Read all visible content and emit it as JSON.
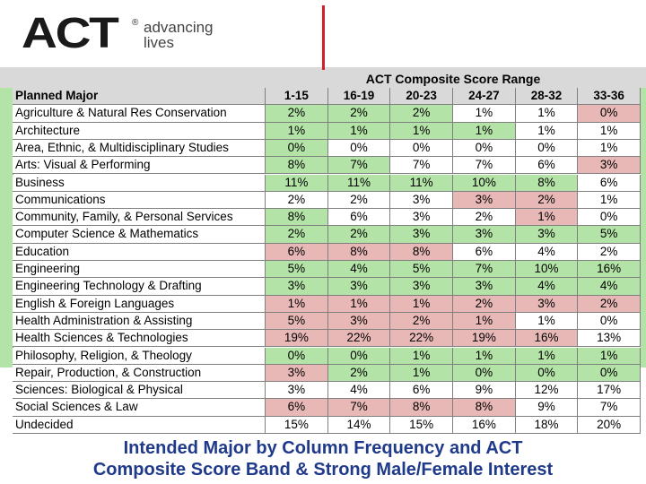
{
  "header": {
    "logo": "ACT",
    "reg": "®",
    "tagline": [
      "advancing",
      "lives"
    ]
  },
  "table": {
    "group_title": "ACT Composite Score Range",
    "columns": [
      "Planned Major",
      "1-15",
      "16-19",
      "20-23",
      "24-27",
      "28-32",
      "33-36"
    ],
    "cell_colors": {
      "g": "#b3e3a6",
      "r": "#e8b8b7",
      "w": "#ffffff",
      "h": "#d9d9d9"
    },
    "rows": [
      [
        "Agriculture & Natural Res Conservation",
        "2%",
        "2%",
        "2%",
        "1%",
        "1%",
        "0%"
      ],
      [
        "Architecture",
        "1%",
        "1%",
        "1%",
        "1%",
        "1%",
        "1%"
      ],
      [
        "Area, Ethnic, & Multidisciplinary Studies",
        "0%",
        "0%",
        "0%",
        "0%",
        "0%",
        "1%"
      ],
      [
        "Arts: Visual & Performing",
        "8%",
        "7%",
        "7%",
        "7%",
        "6%",
        "3%"
      ],
      [
        "Business",
        "11%",
        "11%",
        "11%",
        "10%",
        "8%",
        "6%"
      ],
      [
        "Communications",
        "2%",
        "2%",
        "3%",
        "3%",
        "2%",
        "1%"
      ],
      [
        "Community, Family, & Personal Services",
        "8%",
        "6%",
        "3%",
        "2%",
        "1%",
        "0%"
      ],
      [
        "Computer Science & Mathematics",
        "2%",
        "2%",
        "3%",
        "3%",
        "3%",
        "5%"
      ],
      [
        "Education",
        "6%",
        "8%",
        "8%",
        "6%",
        "4%",
        "2%"
      ],
      [
        "Engineering",
        "5%",
        "4%",
        "5%",
        "7%",
        "10%",
        "16%"
      ],
      [
        "Engineering Technology & Drafting",
        "3%",
        "3%",
        "3%",
        "3%",
        "4%",
        "4%"
      ],
      [
        "English & Foreign Languages",
        "1%",
        "1%",
        "1%",
        "2%",
        "3%",
        "2%"
      ],
      [
        "Health Administration & Assisting",
        "5%",
        "3%",
        "2%",
        "1%",
        "1%",
        "0%"
      ],
      [
        "Health Sciences & Technologies",
        "19%",
        "22%",
        "22%",
        "19%",
        "16%",
        "13%"
      ],
      [
        "Philosophy, Religion, & Theology",
        "0%",
        "0%",
        "1%",
        "1%",
        "1%",
        "1%"
      ],
      [
        "Repair, Production, & Construction",
        "3%",
        "2%",
        "1%",
        "0%",
        "0%",
        "0%"
      ],
      [
        "Sciences: Biological & Physical",
        "3%",
        "4%",
        "6%",
        "9%",
        "12%",
        "17%"
      ],
      [
        "Social Sciences & Law",
        "6%",
        "7%",
        "8%",
        "8%",
        "9%",
        "7%"
      ],
      [
        "Undecided",
        "15%",
        "14%",
        "15%",
        "16%",
        "18%",
        "20%"
      ]
    ],
    "shading": [
      "wgggwwr",
      "wggggww",
      "wgwwwww",
      "wggwwwr",
      "wgggggw",
      "wwwwrrw",
      "wgwwwrw",
      "wgggggg",
      "wrrrwww",
      "wgggggg",
      "wgggggg",
      "wrrrrrr",
      "wrrrrww",
      "wrrrrrw",
      "wgggggg",
      "wrggggg",
      "wwwwwww",
      "wrrrrww",
      "wwwwwww"
    ]
  },
  "caption": [
    "Intended Major by Column Frequency and ACT",
    "Composite Score Band & Strong Male/Female Interest"
  ]
}
